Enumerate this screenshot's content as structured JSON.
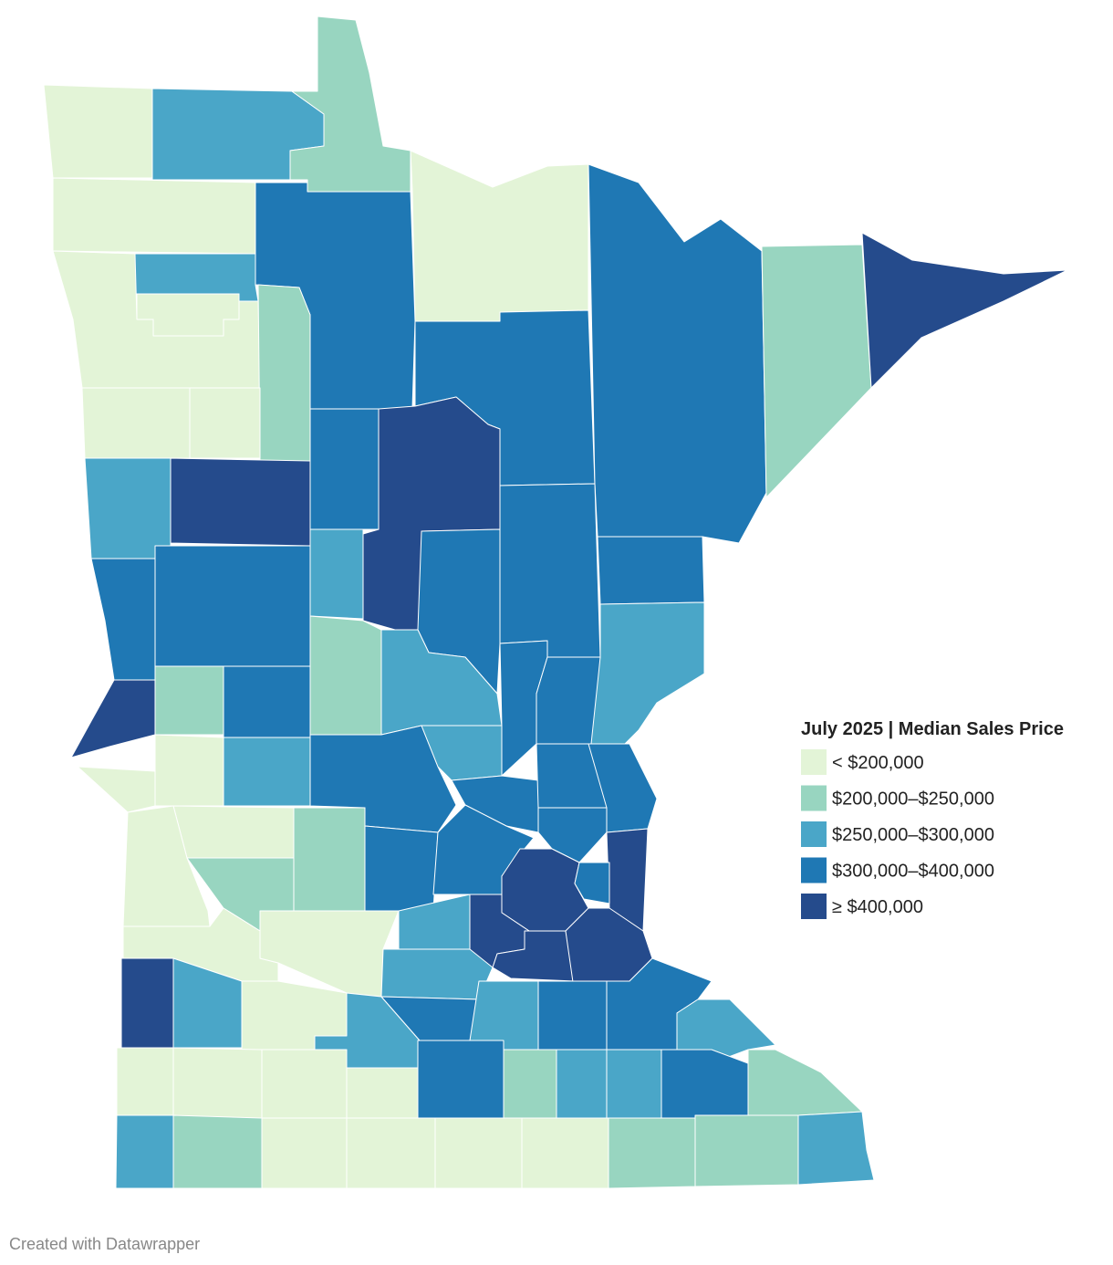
{
  "legend": {
    "title": "July 2025 | Median Sales Price",
    "items": [
      {
        "label": "< $200,000",
        "color": "#e3f4d7"
      },
      {
        "label": "$200,000–$250,000",
        "color": "#98d5c0"
      },
      {
        "label": "$250,000–$300,000",
        "color": "#4aa6c8"
      },
      {
        "label": "$300,000–$400,000",
        "color": "#1f78b4"
      },
      {
        "label": "≥ $400,000",
        "color": "#254b8c"
      }
    ]
  },
  "credit": "Created with Datawrapper"
}
